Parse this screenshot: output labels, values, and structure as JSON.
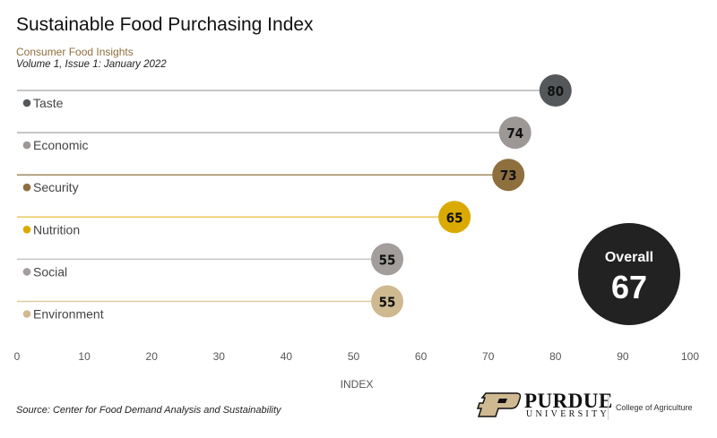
{
  "header": {
    "title": "Sustainable Food Purchasing Index",
    "subtitle": "Consumer Food Insights",
    "issue": "Volume 1, Issue 1: January 2022"
  },
  "chart_data": {
    "type": "lollipop",
    "title": "Sustainable Food Purchasing Index",
    "xlabel": "INDEX",
    "xlim": [
      0,
      100
    ],
    "xticks": [
      0,
      10,
      20,
      30,
      40,
      50,
      60,
      70,
      80,
      90,
      100
    ],
    "categories": [
      "Taste",
      "Economic",
      "Security",
      "Nutrition",
      "Social",
      "Environment"
    ],
    "values": [
      80,
      74,
      73,
      65,
      55,
      55
    ],
    "colors": [
      "#54585a",
      "#9d9795",
      "#8e6f3e",
      "#daaa00",
      "#a39d9b",
      "#cfb991"
    ],
    "line_colors": [
      "#b3b3b3",
      "#b3b3b3",
      "#a08860",
      "#e8c860",
      "#c4c4c4",
      "#dccb9f"
    ],
    "overall": {
      "label": "Overall",
      "value": 67,
      "color": "#222222"
    },
    "grid": false,
    "legend": "none"
  },
  "footer": {
    "source": "Source:  Center for Food Demand Analysis and Sustainability",
    "logo_name": "PURDUE",
    "logo_sub": "UNIVERSITY",
    "college": "College of Agriculture"
  }
}
